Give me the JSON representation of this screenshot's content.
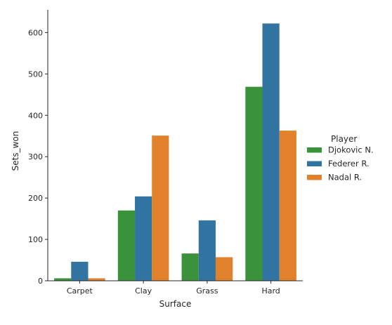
{
  "chart_data": {
    "type": "bar",
    "title": "",
    "xlabel": "Surface",
    "ylabel": "Sets_won",
    "categories": [
      "Carpet",
      "Clay",
      "Grass",
      "Hard"
    ],
    "series": [
      {
        "name": "Djokovic N.",
        "color": "#3a923a",
        "values": [
          6,
          170,
          66,
          469
        ]
      },
      {
        "name": "Federer R.",
        "color": "#3274a1",
        "values": [
          46,
          204,
          146,
          622
        ]
      },
      {
        "name": "Nadal R.",
        "color": "#e1812c",
        "values": [
          6,
          351,
          57,
          363
        ]
      }
    ],
    "ylim": [
      0,
      655
    ],
    "yticks": [
      0,
      100,
      200,
      300,
      400,
      500,
      600
    ],
    "legend": {
      "title": "Player",
      "placement": "right"
    },
    "grid": false
  }
}
